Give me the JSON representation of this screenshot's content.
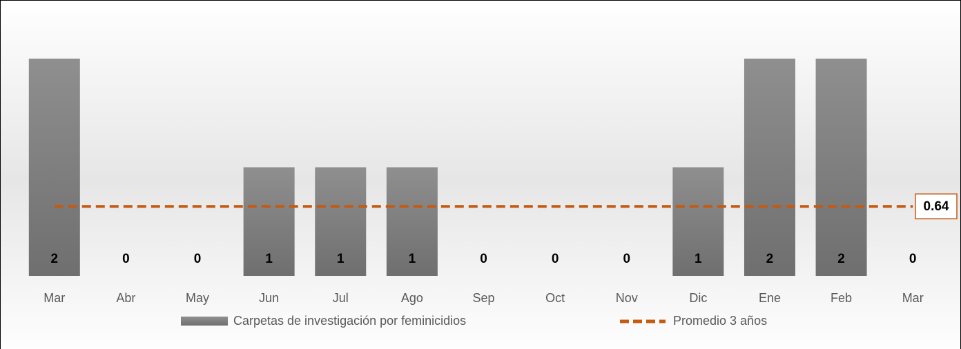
{
  "chart_data": {
    "type": "bar",
    "categories": [
      "Mar",
      "Abr",
      "May",
      "Jun",
      "Jul",
      "Ago",
      "Sep",
      "Oct",
      "Nov",
      "Dic",
      "Ene",
      "Feb",
      "Mar"
    ],
    "series": [
      {
        "name": "Carpetas de investigación por feminicidios",
        "color": "#8c8c8c",
        "values": [
          2,
          0,
          0,
          1,
          1,
          1,
          0,
          0,
          0,
          1,
          2,
          2,
          0
        ]
      },
      {
        "name": "Promedio 3 años",
        "color": "#c55a11",
        "type": "line",
        "values": [
          0.64,
          0.64,
          0.64,
          0.64,
          0.64,
          0.64,
          0.64,
          0.64,
          0.64,
          0.64,
          0.64,
          0.64,
          0.64
        ]
      }
    ],
    "ylim": [
      0,
      2
    ]
  }
}
